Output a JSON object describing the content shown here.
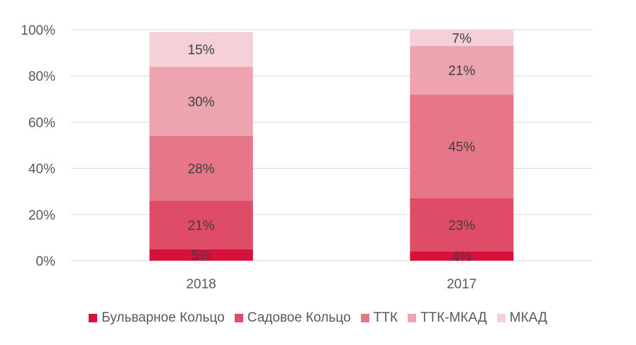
{
  "chart_data": {
    "type": "bar",
    "stacked": true,
    "categories": [
      "2018",
      "2017"
    ],
    "series": [
      {
        "name": "Бульварное Кольцо",
        "values": [
          5,
          4
        ],
        "labels": [
          "5%",
          "4%"
        ],
        "color": "#D6113B"
      },
      {
        "name": "Садовое Кольцо",
        "values": [
          21,
          23
        ],
        "labels": [
          "21%",
          "23%"
        ],
        "color": "#DE4C67"
      },
      {
        "name": "ТТК",
        "values": [
          28,
          45
        ],
        "labels": [
          "28%",
          "45%"
        ],
        "color": "#E57789"
      },
      {
        "name": "ТТК-МКАД",
        "values": [
          30,
          21
        ],
        "labels": [
          "30%",
          "21%"
        ],
        "color": "#EDA4AF"
      },
      {
        "name": "МКАД",
        "values": [
          15,
          7
        ],
        "labels": [
          "15%",
          "7%"
        ],
        "color": "#F6D0D7"
      }
    ],
    "ylim": [
      0,
      100
    ],
    "yticks": [
      "0%",
      "20%",
      "40%",
      "60%",
      "80%",
      "100%"
    ],
    "grid": true,
    "legend_position": "bottom"
  }
}
